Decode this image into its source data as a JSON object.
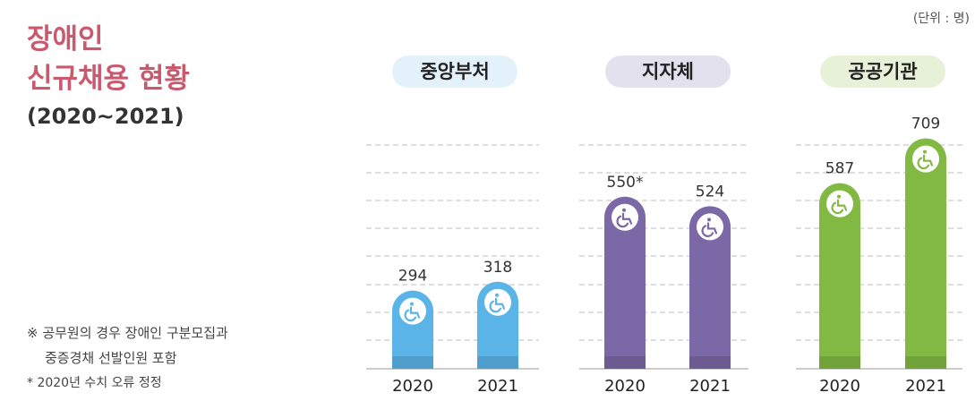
{
  "header": {
    "title_line1": "장애인",
    "title_line2": "신규채용 현황",
    "subtitle": "(2020~2021)",
    "unit": "(단위 : 명)"
  },
  "notes": {
    "line1": "※ 공무원의 경우 장애인 구분모집과",
    "line2": "중증경채 선발인원 포함",
    "line3": "* 2020년 수치 오류 정정"
  },
  "colors": {
    "blue": "#5ab4e8",
    "blue_pill": "#e3f1fb",
    "purple": "#7b68a6",
    "purple_pill": "#e4e1ee",
    "green": "#82b942",
    "green_pill": "#e6f1d8",
    "title": "#c95a6e"
  },
  "chart_data": {
    "type": "bar",
    "title": "장애인 신규채용 현황 (2020~2021)",
    "unit": "(단위 : 명)",
    "icon": "wheelchair-icon",
    "grid": true,
    "groups": [
      {
        "name": "중앙부처",
        "color": "#5ab4e8",
        "pill_color": "#e3f1fb",
        "bars": [
          {
            "year": "2020",
            "value": 294,
            "label": "294"
          },
          {
            "year": "2021",
            "value": 318,
            "label": "318"
          }
        ]
      },
      {
        "name": "지자체",
        "color": "#7b68a6",
        "pill_color": "#e4e1ee",
        "bars": [
          {
            "year": "2020",
            "value": 550,
            "label": "550*"
          },
          {
            "year": "2021",
            "value": 524,
            "label": "524"
          }
        ]
      },
      {
        "name": "공공기관",
        "color": "#82b942",
        "pill_color": "#e6f1d8",
        "bars": [
          {
            "year": "2020",
            "value": 587,
            "label": "587"
          },
          {
            "year": "2021",
            "value": 709,
            "label": "709"
          }
        ]
      }
    ]
  }
}
